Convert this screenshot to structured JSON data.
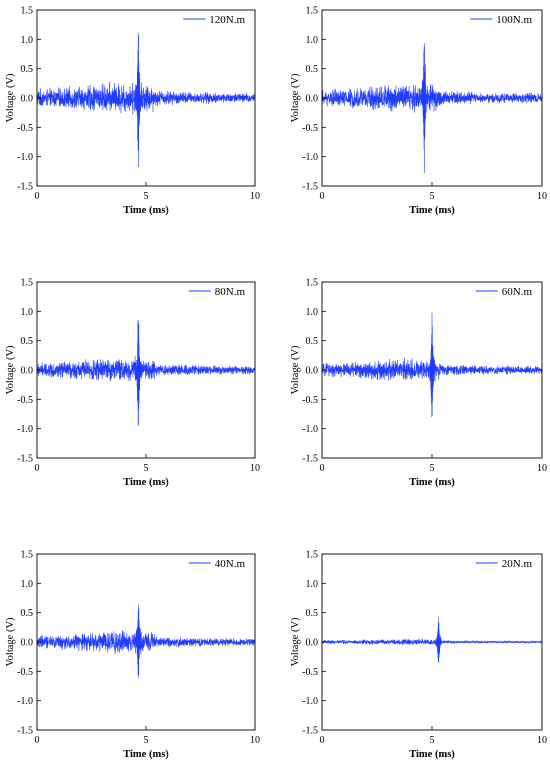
{
  "chart_data": [
    {
      "type": "line",
      "series": [
        {
          "name": "120N.m",
          "color": "#1f3cff",
          "amp": 0.3,
          "peak_x": 4.65,
          "peak_pos": 1.22,
          "peak_neg": -1.22
        }
      ],
      "xlabel": "Time (ms)",
      "ylabel": "Voltage (V)",
      "xlim": [
        0,
        10
      ],
      "ylim": [
        -1.5,
        1.5
      ],
      "xticks": [
        "0",
        "5",
        "10"
      ],
      "yticks": [
        "1.5",
        "1.0",
        "0.5",
        "0.0",
        "-0.5",
        "-1.0",
        "-1.5"
      ],
      "legend": "top-right",
      "grid": false
    },
    {
      "type": "line",
      "series": [
        {
          "name": "100N.m",
          "color": "#1f3cff",
          "amp": 0.28,
          "peak_x": 4.65,
          "peak_pos": 1.18,
          "peak_neg": -1.18
        }
      ],
      "xlabel": "Time (ms)",
      "ylabel": "Voltage (V)",
      "xlim": [
        0,
        10
      ],
      "ylim": [
        -1.5,
        1.5
      ],
      "xticks": [
        "0",
        "5",
        "10"
      ],
      "yticks": [
        "1.5",
        "1.0",
        "0.5",
        "0.0",
        "-0.5",
        "-1.0",
        "-1.5"
      ],
      "legend": "top-right",
      "grid": false
    },
    {
      "type": "line",
      "series": [
        {
          "name": "80N.m",
          "color": "#1f3cff",
          "amp": 0.24,
          "peak_x": 4.65,
          "peak_pos": 1.1,
          "peak_neg": -1.1
        }
      ],
      "xlabel": "Time (ms)",
      "ylabel": "Voltage (V)",
      "xlim": [
        0,
        10
      ],
      "ylim": [
        -1.5,
        1.5
      ],
      "xticks": [
        "0",
        "5",
        "10"
      ],
      "yticks": [
        "1.5",
        "1.0",
        "0.5",
        "0.0",
        "-0.5",
        "-1.0",
        "-1.5"
      ],
      "legend": "top-right",
      "grid": false
    },
    {
      "type": "line",
      "series": [
        {
          "name": "60N.m",
          "color": "#1f3cff",
          "amp": 0.22,
          "peak_x": 5.0,
          "peak_pos": 1.04,
          "peak_neg": -1.02
        }
      ],
      "xlabel": "Time (ms)",
      "ylabel": "Voltage (V)",
      "xlim": [
        0,
        10
      ],
      "ylim": [
        -1.5,
        1.5
      ],
      "xticks": [
        "0",
        "5",
        "10"
      ],
      "yticks": [
        "1.5",
        "1.0",
        "0.5",
        "0.0",
        "-0.5",
        "-1.0",
        "-1.5"
      ],
      "legend": "top-right",
      "grid": false
    },
    {
      "type": "line",
      "series": [
        {
          "name": "40N.m",
          "color": "#1f3cff",
          "amp": 0.22,
          "peak_x": 4.65,
          "peak_pos": 0.78,
          "peak_neg": -0.72
        }
      ],
      "xlabel": "Time (ms)",
      "ylabel": "Voltage (V)",
      "xlim": [
        0,
        10
      ],
      "ylim": [
        -1.5,
        1.5
      ],
      "xticks": [
        "0",
        "5",
        "10"
      ],
      "yticks": [
        "1.5",
        "1.0",
        "0.5",
        "0.0",
        "-0.5",
        "-1.0",
        "-1.5"
      ],
      "legend": "top-right",
      "grid": false
    },
    {
      "type": "line",
      "series": [
        {
          "name": "20N.m",
          "color": "#1f3cff",
          "amp": 0.06,
          "peak_x": 5.3,
          "peak_pos": 0.48,
          "peak_neg": -0.48
        }
      ],
      "xlabel": "Time (ms)",
      "ylabel": "Voltage (V)",
      "xlim": [
        0,
        10
      ],
      "ylim": [
        -1.5,
        1.5
      ],
      "xticks": [
        "0",
        "5",
        "10"
      ],
      "yticks": [
        "1.5",
        "1.0",
        "0.5",
        "0.0",
        "-0.5",
        "-1.0",
        "-1.5"
      ],
      "legend": "top-right",
      "grid": false
    }
  ]
}
